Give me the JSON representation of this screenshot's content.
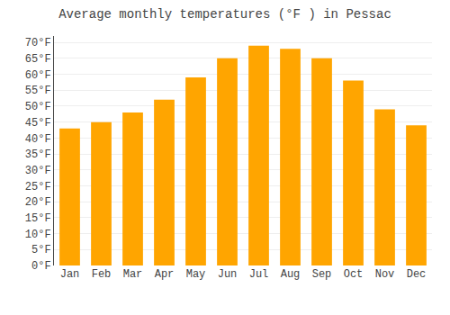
{
  "chart_data": {
    "type": "bar",
    "title": "Average monthly temperatures (°F ) in Pessac",
    "categories": [
      "Jan",
      "Feb",
      "Mar",
      "Apr",
      "May",
      "Jun",
      "Jul",
      "Aug",
      "Sep",
      "Oct",
      "Nov",
      "Dec"
    ],
    "values": [
      43,
      45,
      48,
      52,
      59,
      65,
      69,
      68,
      65,
      58,
      49,
      44
    ],
    "color": "#FFA500",
    "ylim": [
      0,
      72
    ],
    "yticks": [
      {
        "value": 0,
        "label": "0°F"
      },
      {
        "value": 5,
        "label": "5°F"
      },
      {
        "value": 10,
        "label": "10°F"
      },
      {
        "value": 15,
        "label": "15°F"
      },
      {
        "value": 20,
        "label": "20°F"
      },
      {
        "value": 25,
        "label": "25°F"
      },
      {
        "value": 30,
        "label": "30°F"
      },
      {
        "value": 35,
        "label": "35°F"
      },
      {
        "value": 40,
        "label": "40°F"
      },
      {
        "value": 45,
        "label": "45°F"
      },
      {
        "value": 50,
        "label": "50°F"
      },
      {
        "value": 55,
        "label": "55°F"
      },
      {
        "value": 60,
        "label": "60°F"
      },
      {
        "value": 65,
        "label": "65°F"
      },
      {
        "value": 70,
        "label": "70°F"
      }
    ],
    "grid": true
  }
}
